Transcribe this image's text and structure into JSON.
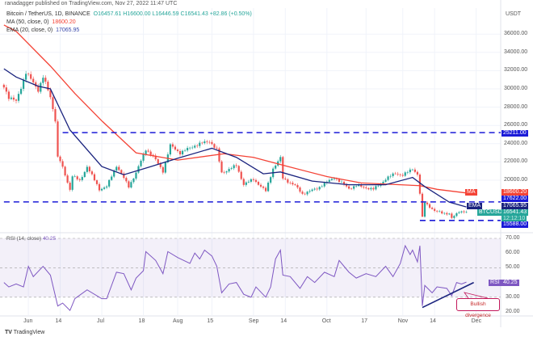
{
  "header": {
    "publisher": "ranadagger published on TradingView.com, Nov 27, 2022 11:47 UTC",
    "symbol": "Bitcoin / TetherUS, 1D, BINANCE",
    "ohlc": {
      "o": "O16457.61",
      "h": "H16600.00",
      "l": "L16446.59",
      "c": "C16541.43",
      "chg": "+82.86 (+0.50%)"
    },
    "ma_label": "MA (50, close, 0)",
    "ma_value": "18600.20",
    "ema_label": "EMA (20, close, 0)",
    "ema_value": "17065.95"
  },
  "colors": {
    "up": "#26a69a",
    "down": "#ef5350",
    "ma": "#f44336",
    "ema": "#1a237e",
    "levels": "#1b1bd8",
    "rsi": "#7e57c2",
    "badge_blue": "#1b1bd8"
  },
  "price_axis": {
    "unit": "USDT",
    "ticks": [
      "36000.00",
      "34000.00",
      "32000.00",
      "30000.00",
      "28000.00",
      "26000.00",
      "24000.00",
      "22000.00",
      "20000.00"
    ]
  },
  "badges": {
    "ma": {
      "tag": "MA",
      "value": "18600.20"
    },
    "level_17622": "17622.00",
    "ema": {
      "tag": "EMA",
      "value": "17065.95"
    },
    "last": {
      "tag": "BTCUSDT",
      "value": "16541.43",
      "countdown": "12:12:10"
    },
    "level_15588": "15588.00",
    "level_25211": "25211.00",
    "rsi": {
      "tag": "RSI",
      "value": "40.25"
    }
  },
  "time_axis": [
    {
      "label": "Jun",
      "date": "2022-06-01"
    },
    {
      "label": "14",
      "date": "2022-06-14"
    },
    {
      "label": "Jul",
      "date": "2022-07-01"
    },
    {
      "label": "18",
      "date": "2022-07-18"
    },
    {
      "label": "Aug",
      "date": "2022-08-01"
    },
    {
      "label": "15",
      "date": "2022-08-15"
    },
    {
      "label": "Sep",
      "date": "2022-09-01"
    },
    {
      "label": "14",
      "date": "2022-09-14"
    },
    {
      "label": "Oct",
      "date": "2022-10-01"
    },
    {
      "label": "17",
      "date": "2022-10-17"
    },
    {
      "label": "Nov",
      "date": "2022-11-01"
    },
    {
      "label": "14",
      "date": "2022-11-14"
    },
    {
      "label": "Dec",
      "date": "2022-12-01"
    }
  ],
  "rsi_panel": {
    "legend": "RSI (14, close)",
    "legend_value": "40.25",
    "ticks": [
      "70.00",
      "60.00",
      "50.00",
      "30.00",
      "20.00"
    ],
    "annotation": "Bullish divergence"
  },
  "footer": {
    "logo": "TradingView"
  },
  "chart_data": {
    "type": "candlestick",
    "ylim": [
      14000,
      37000
    ],
    "levels": [
      {
        "price": 25211,
        "from": "2022-06-15"
      },
      {
        "price": 17622,
        "from": "2022-05-22"
      },
      {
        "price": 15588,
        "from": "2022-11-08"
      }
    ],
    "close_keypoints": [
      [
        "2022-05-22",
        30300
      ],
      [
        "2022-05-24",
        29100
      ],
      [
        "2022-05-27",
        28600
      ],
      [
        "2022-05-31",
        31800
      ],
      [
        "2022-06-05",
        29900
      ],
      [
        "2022-06-07",
        31300
      ],
      [
        "2022-06-10",
        29100
      ],
      [
        "2022-06-12",
        26600
      ],
      [
        "2022-06-13",
        22500
      ],
      [
        "2022-06-14",
        22100
      ],
      [
        "2022-06-18",
        19000
      ],
      [
        "2022-06-19",
        20500
      ],
      [
        "2022-06-22",
        19900
      ],
      [
        "2022-06-25",
        21500
      ],
      [
        "2022-06-30",
        19000
      ],
      [
        "2022-07-03",
        19300
      ],
      [
        "2022-07-07",
        21600
      ],
      [
        "2022-07-12",
        19300
      ],
      [
        "2022-07-15",
        20800
      ],
      [
        "2022-07-19",
        23400
      ],
      [
        "2022-07-22",
        22600
      ],
      [
        "2022-07-26",
        21000
      ],
      [
        "2022-07-29",
        23800
      ],
      [
        "2022-08-02",
        23000
      ],
      [
        "2022-08-08",
        23800
      ],
      [
        "2022-08-14",
        24300
      ],
      [
        "2022-08-17",
        23300
      ],
      [
        "2022-08-19",
        20800
      ],
      [
        "2022-08-25",
        21600
      ],
      [
        "2022-08-28",
        19550
      ],
      [
        "2022-09-01",
        20100
      ],
      [
        "2022-09-06",
        18800
      ],
      [
        "2022-09-09",
        21300
      ],
      [
        "2022-09-12",
        22400
      ],
      [
        "2022-09-13",
        20200
      ],
      [
        "2022-09-18",
        19400
      ],
      [
        "2022-09-21",
        18500
      ],
      [
        "2022-09-27",
        19100
      ],
      [
        "2022-10-04",
        20300
      ],
      [
        "2022-10-10",
        19100
      ],
      [
        "2022-10-13",
        19400
      ],
      [
        "2022-10-20",
        19000
      ],
      [
        "2022-10-25",
        20100
      ],
      [
        "2022-10-29",
        20800
      ],
      [
        "2022-11-01",
        20500
      ],
      [
        "2022-11-05",
        21300
      ],
      [
        "2022-11-07",
        20600
      ],
      [
        "2022-11-08",
        18500
      ],
      [
        "2022-11-09",
        15900
      ],
      [
        "2022-11-10",
        17600
      ],
      [
        "2022-11-14",
        16600
      ],
      [
        "2022-11-20",
        16300
      ],
      [
        "2022-11-21",
        15800
      ],
      [
        "2022-11-24",
        16600
      ],
      [
        "2022-11-27",
        16541.43
      ]
    ],
    "ma50": [
      [
        "2022-05-22",
        37000
      ],
      [
        "2022-05-27",
        36300
      ],
      [
        "2022-06-10",
        32500
      ],
      [
        "2022-06-20",
        29500
      ],
      [
        "2022-07-01",
        26500
      ],
      [
        "2022-07-15",
        23000
      ],
      [
        "2022-08-01",
        22200
      ],
      [
        "2022-08-20",
        22900
      ],
      [
        "2022-09-01",
        22500
      ],
      [
        "2022-09-15",
        21500
      ],
      [
        "2022-10-01",
        20400
      ],
      [
        "2022-10-15",
        19700
      ],
      [
        "2022-11-08",
        19400
      ],
      [
        "2022-11-15",
        19000
      ],
      [
        "2022-11-27",
        18600.2
      ]
    ],
    "ema20": [
      [
        "2022-05-22",
        32200
      ],
      [
        "2022-05-27",
        31300
      ],
      [
        "2022-06-05",
        30300
      ],
      [
        "2022-06-10",
        30000
      ],
      [
        "2022-06-18",
        25500
      ],
      [
        "2022-07-01",
        21500
      ],
      [
        "2022-07-10",
        20600
      ],
      [
        "2022-07-20",
        21400
      ],
      [
        "2022-08-01",
        22400
      ],
      [
        "2022-08-15",
        23500
      ],
      [
        "2022-08-25",
        22500
      ],
      [
        "2022-09-05",
        20700
      ],
      [
        "2022-09-12",
        20900
      ],
      [
        "2022-09-25",
        19900
      ],
      [
        "2022-10-10",
        19500
      ],
      [
        "2022-10-25",
        19500
      ],
      [
        "2022-11-05",
        20300
      ],
      [
        "2022-11-10",
        19300
      ],
      [
        "2022-11-20",
        17600
      ],
      [
        "2022-11-27",
        17065.95
      ]
    ],
    "rsi": [
      [
        "2022-05-22",
        40
      ],
      [
        "2022-05-24",
        37
      ],
      [
        "2022-05-27",
        39
      ],
      [
        "2022-05-30",
        37
      ],
      [
        "2022-06-01",
        51
      ],
      [
        "2022-06-03",
        44
      ],
      [
        "2022-06-07",
        51
      ],
      [
        "2022-06-10",
        45
      ],
      [
        "2022-06-13",
        24
      ],
      [
        "2022-06-15",
        26
      ],
      [
        "2022-06-18",
        21
      ],
      [
        "2022-06-20",
        29
      ],
      [
        "2022-06-25",
        35
      ],
      [
        "2022-07-01",
        29
      ],
      [
        "2022-07-03",
        29
      ],
      [
        "2022-07-07",
        47
      ],
      [
        "2022-07-10",
        46
      ],
      [
        "2022-07-13",
        35
      ],
      [
        "2022-07-15",
        43
      ],
      [
        "2022-07-18",
        48
      ],
      [
        "2022-07-19",
        61
      ],
      [
        "2022-07-23",
        55
      ],
      [
        "2022-07-26",
        46
      ],
      [
        "2022-07-28",
        61
      ],
      [
        "2022-08-01",
        57
      ],
      [
        "2022-08-06",
        53
      ],
      [
        "2022-08-08",
        60
      ],
      [
        "2022-08-10",
        56
      ],
      [
        "2022-08-12",
        62
      ],
      [
        "2022-08-15",
        58
      ],
      [
        "2022-08-17",
        51
      ],
      [
        "2022-08-19",
        33
      ],
      [
        "2022-08-22",
        39
      ],
      [
        "2022-08-25",
        40
      ],
      [
        "2022-08-28",
        32
      ],
      [
        "2022-08-31",
        30
      ],
      [
        "2022-09-02",
        37
      ],
      [
        "2022-09-06",
        30
      ],
      [
        "2022-09-08",
        37
      ],
      [
        "2022-09-10",
        56
      ],
      [
        "2022-09-12",
        62
      ],
      [
        "2022-09-13",
        45
      ],
      [
        "2022-09-16",
        44
      ],
      [
        "2022-09-20",
        36
      ],
      [
        "2022-09-23",
        44
      ],
      [
        "2022-09-26",
        40
      ],
      [
        "2022-09-30",
        47
      ],
      [
        "2022-10-04",
        44
      ],
      [
        "2022-10-06",
        55
      ],
      [
        "2022-10-10",
        47
      ],
      [
        "2022-10-13",
        43
      ],
      [
        "2022-10-17",
        46
      ],
      [
        "2022-10-21",
        44
      ],
      [
        "2022-10-25",
        51
      ],
      [
        "2022-10-28",
        44
      ],
      [
        "2022-10-31",
        53
      ],
      [
        "2022-11-02",
        65
      ],
      [
        "2022-11-04",
        59
      ],
      [
        "2022-11-05",
        62
      ],
      [
        "2022-11-07",
        54
      ],
      [
        "2022-11-08",
        65
      ],
      [
        "2022-11-09",
        24
      ],
      [
        "2022-11-10",
        38
      ],
      [
        "2022-11-13",
        33
      ],
      [
        "2022-11-15",
        37
      ],
      [
        "2022-11-19",
        36
      ],
      [
        "2022-11-21",
        31
      ],
      [
        "2022-11-23",
        40
      ],
      [
        "2022-11-25",
        39
      ],
      [
        "2022-11-27",
        40.25
      ]
    ],
    "rsi_ylim": [
      15,
      75
    ],
    "rsi_band": [
      30,
      70
    ],
    "rsi_trendline": [
      [
        "2022-11-09",
        23
      ],
      [
        "2022-11-30",
        40
      ]
    ]
  }
}
